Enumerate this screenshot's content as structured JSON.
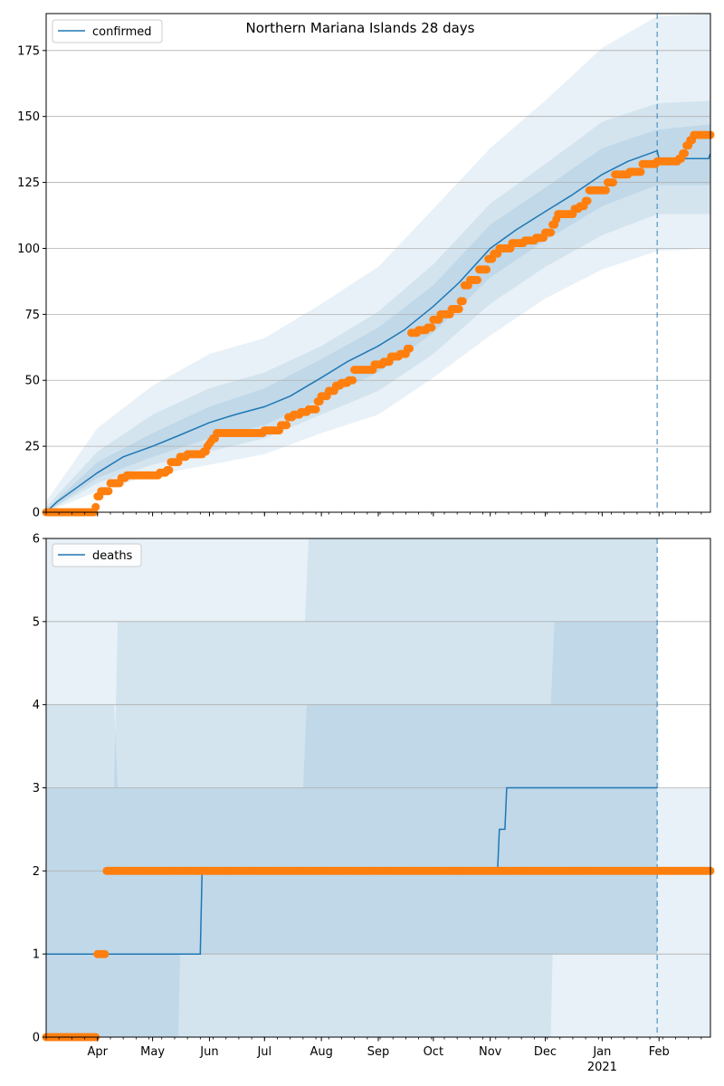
{
  "figure": {
    "title": "Northern Mariana Islands 28 days"
  },
  "chart_data": [
    {
      "type": "line",
      "title": "Northern Mariana Islands 28 days",
      "legend": {
        "label": "confirmed",
        "placement": "top-left"
      },
      "ylim": [
        0,
        189
      ],
      "yticks": [
        0,
        25,
        50,
        75,
        100,
        125,
        150,
        175
      ],
      "xticks": [
        {
          "date": "2020-04-01",
          "label": "Apr"
        },
        {
          "date": "2020-05-01",
          "label": "May"
        },
        {
          "date": "2020-06-01",
          "label": "Jun"
        },
        {
          "date": "2020-07-01",
          "label": "Jul"
        },
        {
          "date": "2020-08-01",
          "label": "Aug"
        },
        {
          "date": "2020-09-01",
          "label": "Sep"
        },
        {
          "date": "2020-10-01",
          "label": "Oct"
        },
        {
          "date": "2020-11-01",
          "label": "Nov"
        },
        {
          "date": "2020-12-01",
          "label": "Dec"
        },
        {
          "date": "2021-01-01",
          "label": "Jan",
          "sublabel": "2021"
        },
        {
          "date": "2021-02-01",
          "label": "Feb"
        }
      ],
      "xlim": [
        "2020-03-04",
        "2021-03-01"
      ],
      "forecast_start": "2021-01-31",
      "grid": "y",
      "colors": {
        "model": "#1f77b4",
        "observed": "#ff7f0e",
        "band": "#1f77b4"
      },
      "model": [
        [
          "2020-03-04",
          0
        ],
        [
          "2020-03-10",
          4
        ],
        [
          "2020-03-20",
          9
        ],
        [
          "2020-04-01",
          15
        ],
        [
          "2020-04-15",
          21
        ],
        [
          "2020-05-01",
          25
        ],
        [
          "2020-05-15",
          29
        ],
        [
          "2020-06-01",
          34
        ],
        [
          "2020-06-15",
          37
        ],
        [
          "2020-07-01",
          40
        ],
        [
          "2020-07-15",
          44
        ],
        [
          "2020-08-01",
          51
        ],
        [
          "2020-08-15",
          57
        ],
        [
          "2020-09-01",
          63
        ],
        [
          "2020-09-15",
          69
        ],
        [
          "2020-10-01",
          78
        ],
        [
          "2020-10-15",
          87
        ],
        [
          "2020-11-01",
          100
        ],
        [
          "2020-11-15",
          107
        ],
        [
          "2020-12-01",
          114
        ],
        [
          "2020-12-15",
          120
        ],
        [
          "2021-01-01",
          128
        ],
        [
          "2021-01-15",
          133
        ],
        [
          "2021-01-31",
          137
        ],
        [
          "2021-02-01",
          134
        ],
        [
          "2021-02-28",
          134
        ],
        [
          "2021-03-01",
          136
        ]
      ],
      "bands": [
        {
          "name": "outer",
          "lower": [
            [
              "2020-03-04",
              0
            ],
            [
              "2020-04-01",
              8
            ],
            [
              "2020-05-01",
              14
            ],
            [
              "2020-06-01",
              18
            ],
            [
              "2020-07-01",
              22
            ],
            [
              "2020-08-01",
              30
            ],
            [
              "2020-09-01",
              37
            ],
            [
              "2020-10-01",
              51
            ],
            [
              "2020-11-01",
              67
            ],
            [
              "2020-12-01",
              81
            ],
            [
              "2021-01-01",
              92
            ],
            [
              "2021-01-31",
              99
            ],
            [
              "2021-03-01",
              100
            ]
          ],
          "upper": [
            [
              "2020-03-04",
              4
            ],
            [
              "2020-04-01",
              32
            ],
            [
              "2020-05-01",
              48
            ],
            [
              "2020-06-01",
              60
            ],
            [
              "2020-07-01",
              66
            ],
            [
              "2020-08-01",
              79
            ],
            [
              "2020-09-01",
              93
            ],
            [
              "2020-10-01",
              115
            ],
            [
              "2020-11-01",
              138
            ],
            [
              "2020-12-01",
              156
            ],
            [
              "2021-01-01",
              176
            ],
            [
              "2021-01-31",
              188
            ],
            [
              "2021-03-01",
              189
            ]
          ]
        },
        {
          "name": "middle",
          "lower": [
            [
              "2020-03-04",
              0
            ],
            [
              "2020-04-01",
              11
            ],
            [
              "2020-05-01",
              18
            ],
            [
              "2020-06-01",
              23
            ],
            [
              "2020-07-01",
              28
            ],
            [
              "2020-08-01",
              37
            ],
            [
              "2020-09-01",
              46
            ],
            [
              "2020-10-01",
              60
            ],
            [
              "2020-11-01",
              79
            ],
            [
              "2020-12-01",
              93
            ],
            [
              "2021-01-01",
              105
            ],
            [
              "2021-01-31",
              113
            ],
            [
              "2021-03-01",
              113
            ]
          ],
          "upper": [
            [
              "2020-03-04",
              2
            ],
            [
              "2020-04-01",
              23
            ],
            [
              "2020-05-01",
              37
            ],
            [
              "2020-06-01",
              47
            ],
            [
              "2020-07-01",
              53
            ],
            [
              "2020-08-01",
              63
            ],
            [
              "2020-09-01",
              76
            ],
            [
              "2020-10-01",
              94
            ],
            [
              "2020-11-01",
              117
            ],
            [
              "2020-12-01",
              132
            ],
            [
              "2021-01-01",
              148
            ],
            [
              "2021-01-31",
              155
            ],
            [
              "2021-03-01",
              156
            ]
          ]
        },
        {
          "name": "inner",
          "lower": [
            [
              "2020-03-04",
              0
            ],
            [
              "2020-04-01",
              13
            ],
            [
              "2020-05-01",
              21
            ],
            [
              "2020-06-01",
              28
            ],
            [
              "2020-07-01",
              33
            ],
            [
              "2020-08-01",
              43
            ],
            [
              "2020-09-01",
              53
            ],
            [
              "2020-10-01",
              68
            ],
            [
              "2020-11-01",
              89
            ],
            [
              "2020-12-01",
              103
            ],
            [
              "2021-01-01",
              116
            ],
            [
              "2021-01-31",
              124
            ],
            [
              "2021-03-01",
              124
            ]
          ],
          "upper": [
            [
              "2020-03-04",
              1
            ],
            [
              "2020-04-01",
              19
            ],
            [
              "2020-05-01",
              30
            ],
            [
              "2020-06-01",
              40
            ],
            [
              "2020-07-01",
              47
            ],
            [
              "2020-08-01",
              58
            ],
            [
              "2020-09-01",
              70
            ],
            [
              "2020-10-01",
              86
            ],
            [
              "2020-11-01",
              109
            ],
            [
              "2020-12-01",
              123
            ],
            [
              "2021-01-01",
              138
            ],
            [
              "2021-01-31",
              145
            ],
            [
              "2021-03-01",
              147
            ]
          ]
        }
      ],
      "observed": [
        [
          "2020-03-04",
          0
        ],
        [
          "2020-03-31",
          2
        ],
        [
          "2020-04-01",
          6
        ],
        [
          "2020-04-03",
          8
        ],
        [
          "2020-04-08",
          11
        ],
        [
          "2020-04-14",
          13
        ],
        [
          "2020-04-17",
          14
        ],
        [
          "2020-05-05",
          15
        ],
        [
          "2020-05-09",
          16
        ],
        [
          "2020-05-11",
          19
        ],
        [
          "2020-05-16",
          21
        ],
        [
          "2020-05-20",
          22
        ],
        [
          "2020-05-29",
          23
        ],
        [
          "2020-05-31",
          25
        ],
        [
          "2020-06-01",
          26
        ],
        [
          "2020-06-02",
          27
        ],
        [
          "2020-06-03",
          28
        ],
        [
          "2020-06-05",
          30
        ],
        [
          "2020-07-01",
          31
        ],
        [
          "2020-07-10",
          33
        ],
        [
          "2020-07-14",
          36
        ],
        [
          "2020-07-17",
          37
        ],
        [
          "2020-07-21",
          38
        ],
        [
          "2020-07-25",
          39
        ],
        [
          "2020-07-30",
          42
        ],
        [
          "2020-08-01",
          44
        ],
        [
          "2020-08-05",
          46
        ],
        [
          "2020-08-09",
          48
        ],
        [
          "2020-08-12",
          49
        ],
        [
          "2020-08-16",
          50
        ],
        [
          "2020-08-19",
          54
        ],
        [
          "2020-08-30",
          56
        ],
        [
          "2020-09-04",
          57
        ],
        [
          "2020-09-08",
          59
        ],
        [
          "2020-09-13",
          60
        ],
        [
          "2020-09-17",
          62
        ],
        [
          "2020-09-19",
          68
        ],
        [
          "2020-09-23",
          69
        ],
        [
          "2020-09-28",
          70
        ],
        [
          "2020-10-01",
          73
        ],
        [
          "2020-10-05",
          75
        ],
        [
          "2020-10-11",
          77
        ],
        [
          "2020-10-16",
          80
        ],
        [
          "2020-10-18",
          86
        ],
        [
          "2020-10-21",
          88
        ],
        [
          "2020-10-26",
          92
        ],
        [
          "2020-10-31",
          96
        ],
        [
          "2020-11-03",
          98
        ],
        [
          "2020-11-06",
          100
        ],
        [
          "2020-11-13",
          102
        ],
        [
          "2020-11-20",
          103
        ],
        [
          "2020-11-26",
          104
        ],
        [
          "2020-12-01",
          106
        ],
        [
          "2020-12-05",
          109
        ],
        [
          "2020-12-07",
          111
        ],
        [
          "2020-12-08",
          113
        ],
        [
          "2020-12-17",
          115
        ],
        [
          "2020-12-20",
          116
        ],
        [
          "2020-12-23",
          118
        ],
        [
          "2020-12-25",
          122
        ],
        [
          "2021-01-04",
          125
        ],
        [
          "2021-01-08",
          128
        ],
        [
          "2021-01-16",
          129
        ],
        [
          "2021-01-23",
          132
        ],
        [
          "2021-01-31",
          133
        ],
        [
          "2021-02-10",
          133
        ],
        [
          "2021-02-12",
          134
        ],
        [
          "2021-02-14",
          136
        ],
        [
          "2021-02-16",
          139
        ],
        [
          "2021-02-18",
          141
        ],
        [
          "2021-02-20",
          143
        ],
        [
          "2021-03-01",
          143
        ]
      ]
    },
    {
      "type": "line",
      "legend": {
        "label": "deaths",
        "placement": "top-left"
      },
      "ylim": [
        0,
        6
      ],
      "yticks": [
        0,
        1,
        2,
        3,
        4,
        5,
        6
      ],
      "grid": "y",
      "model": [
        [
          "2020-03-04",
          1
        ],
        [
          "2020-05-27",
          1
        ],
        [
          "2020-05-28",
          2
        ],
        [
          "2020-11-05",
          2
        ],
        [
          "2020-11-06",
          2.5
        ],
        [
          "2020-11-09",
          2.5
        ],
        [
          "2020-11-10",
          3
        ],
        [
          "2021-01-31",
          3
        ]
      ],
      "bands": [
        {
          "name": "outer",
          "lower": [
            [
              "2020-03-04",
              0
            ],
            [
              "2021-01-31",
              0
            ],
            [
              "2021-03-01",
              0
            ]
          ],
          "upper": [
            [
              "2020-03-04",
              6
            ],
            [
              "2021-01-31",
              6
            ],
            [
              "2021-02-01",
              3
            ],
            [
              "2021-03-01",
              3
            ]
          ]
        },
        {
          "name": "middle",
          "lower": [
            [
              "2020-03-04",
              0
            ],
            [
              "2020-05-15",
              0
            ],
            [
              "2020-05-16",
              0
            ],
            [
              "2020-12-04",
              0
            ],
            [
              "2020-12-05",
              1
            ],
            [
              "2021-01-31",
              1
            ]
          ],
          "upper": [
            [
              "2020-03-04",
              3
            ],
            [
              "2020-04-10",
              3
            ],
            [
              "2020-04-12",
              5
            ],
            [
              "2020-07-23",
              5
            ],
            [
              "2020-07-25",
              6
            ],
            [
              "2021-01-31",
              6
            ]
          ]
        },
        {
          "name": "inner",
          "lower": [
            [
              "2020-03-04",
              0
            ],
            [
              "2020-05-15",
              0
            ],
            [
              "2020-05-16",
              1
            ],
            [
              "2021-01-31",
              1
            ]
          ],
          "upper": [
            [
              "2020-03-04",
              4
            ],
            [
              "2020-04-10",
              4
            ],
            [
              "2020-04-12",
              3
            ],
            [
              "2020-07-22",
              3
            ],
            [
              "2020-07-24",
              4
            ],
            [
              "2020-12-04",
              4
            ],
            [
              "2020-12-06",
              5
            ],
            [
              "2021-01-31",
              5
            ]
          ]
        }
      ],
      "observed": [
        [
          "2020-03-04",
          0
        ],
        [
          "2020-03-31",
          0
        ],
        [
          "2020-04-01",
          1
        ],
        [
          "2020-04-05",
          1
        ],
        [
          "2020-04-06",
          2
        ],
        [
          "2021-03-01",
          2
        ]
      ]
    }
  ]
}
